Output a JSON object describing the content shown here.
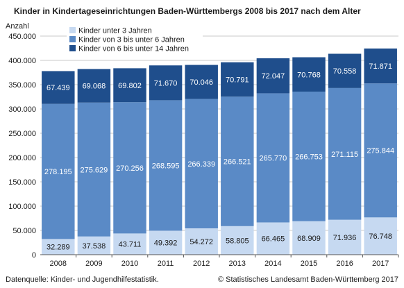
{
  "chart_data": {
    "type": "bar",
    "stacked": true,
    "title": "Kinder in Kindertageseinrichtungen Baden-Württembergs 2008 bis 2017 nach dem Alter",
    "ylabel": "Anzahl",
    "xlabel": "",
    "ylim": [
      0,
      450000
    ],
    "yticks": [
      0,
      50000,
      100000,
      150000,
      200000,
      250000,
      300000,
      350000,
      400000,
      450000
    ],
    "ytick_labels": [
      "0",
      "50.000",
      "100.000",
      "150.000",
      "200.000",
      "250.000",
      "300.000",
      "350.000",
      "400.000",
      "450.000"
    ],
    "grid": true,
    "legend_position": "top-left",
    "categories": [
      "2008",
      "2009",
      "2010",
      "2011",
      "2012",
      "2013",
      "2014",
      "2015",
      "2016",
      "2017"
    ],
    "series": [
      {
        "name": "Kinder unter 3 Jahren",
        "color": "#c6d9f1",
        "label_color": "#1a1a1a",
        "values": [
          32289,
          37538,
          43711,
          49392,
          54272,
          58805,
          66465,
          68909,
          71936,
          76748
        ],
        "labels": [
          "32.289",
          "37.538",
          "43.711",
          "49.392",
          "54.272",
          "58.805",
          "66.465",
          "68.909",
          "71.936",
          "76.748"
        ]
      },
      {
        "name": "Kinder von 3 bis unter 6 Jahren",
        "color": "#5a8ac6",
        "label_color": "#ffffff",
        "values": [
          278195,
          275629,
          270256,
          268595,
          266339,
          266521,
          265770,
          266753,
          271115,
          275844
        ],
        "labels": [
          "278.195",
          "275.629",
          "270.256",
          "268.595",
          "266.339",
          "266.521",
          "265.770",
          "266.753",
          "271.115",
          "275.844"
        ]
      },
      {
        "name": "Kinder von 6 bis unter 14 Jahren",
        "color": "#1f4e8c",
        "label_color": "#ffffff",
        "values": [
          67439,
          69068,
          69802,
          71670,
          70046,
          70791,
          72047,
          70768,
          70558,
          71871
        ],
        "labels": [
          "67.439",
          "69.068",
          "69.802",
          "71.670",
          "70.046",
          "70.791",
          "72.047",
          "70.768",
          "70.558",
          "71.871"
        ]
      }
    ]
  },
  "footer": {
    "source": "Datenquelle: Kinder- und Jugendhilfestatistik.",
    "copyright": "© Statistisches Landesamt Baden-Württemberg 2017"
  }
}
